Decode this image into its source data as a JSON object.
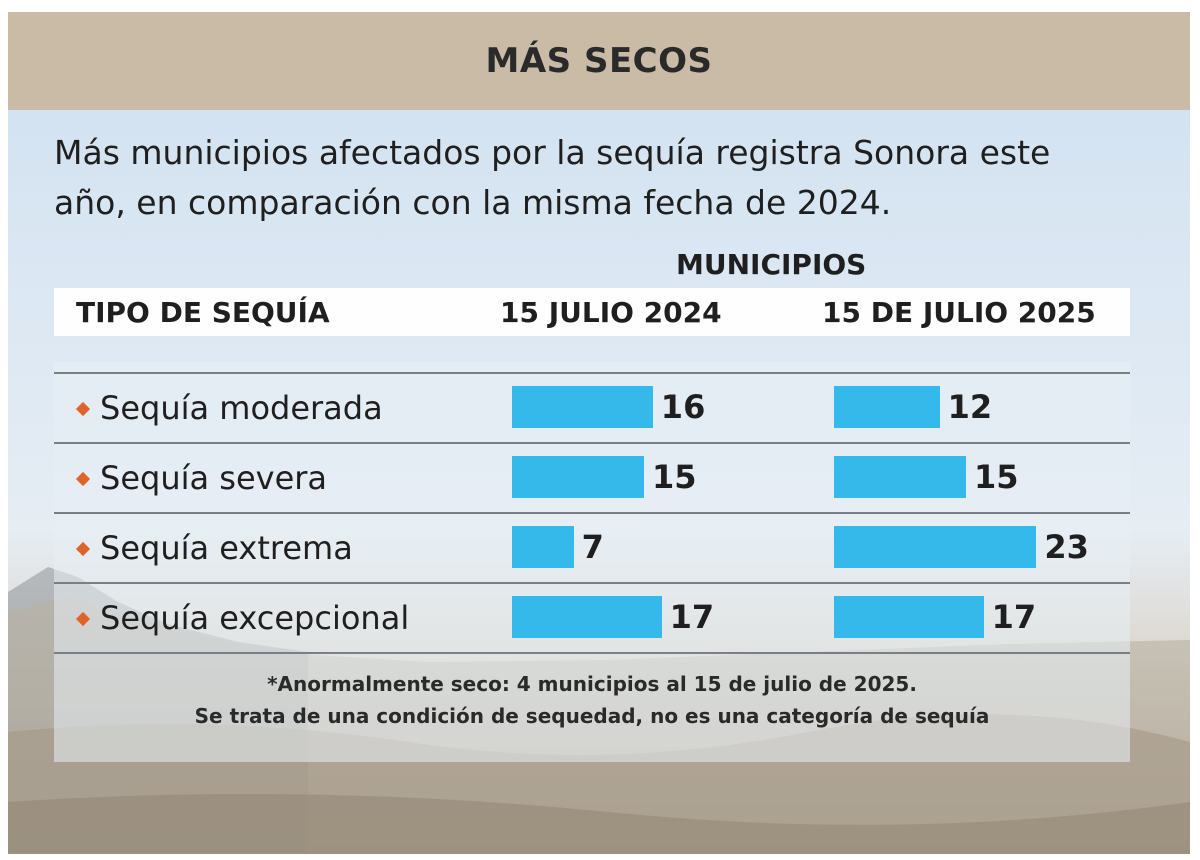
{
  "header": {
    "title": "MÁS SECOS"
  },
  "subtitle": {
    "line1": "Más municipios afectados por la sequía registra Sonora este",
    "line2": "año, en comparación con la misma fecha de 2024."
  },
  "chart_data": {
    "type": "bar",
    "title": "MUNICIPIOS",
    "category_header": "TIPO DE SEQUÍA",
    "categories": [
      "Sequía moderada",
      "Sequía severa",
      "Sequía extrema",
      "Sequía excepcional"
    ],
    "series": [
      {
        "name": "15 JULIO 2024",
        "values": [
          16,
          15,
          7,
          17
        ]
      },
      {
        "name": "15 DE JULIO 2025",
        "values": [
          12,
          15,
          23,
          17
        ]
      }
    ],
    "bar_color": "#35b8ea",
    "bullet_color": "#e0642a"
  },
  "footnote": {
    "line1": "*Anormalmente seco: 4 municipios al 15 de julio de 2025.",
    "line2": "Se trata de una condición de sequedad, no es una categoría de sequía"
  }
}
